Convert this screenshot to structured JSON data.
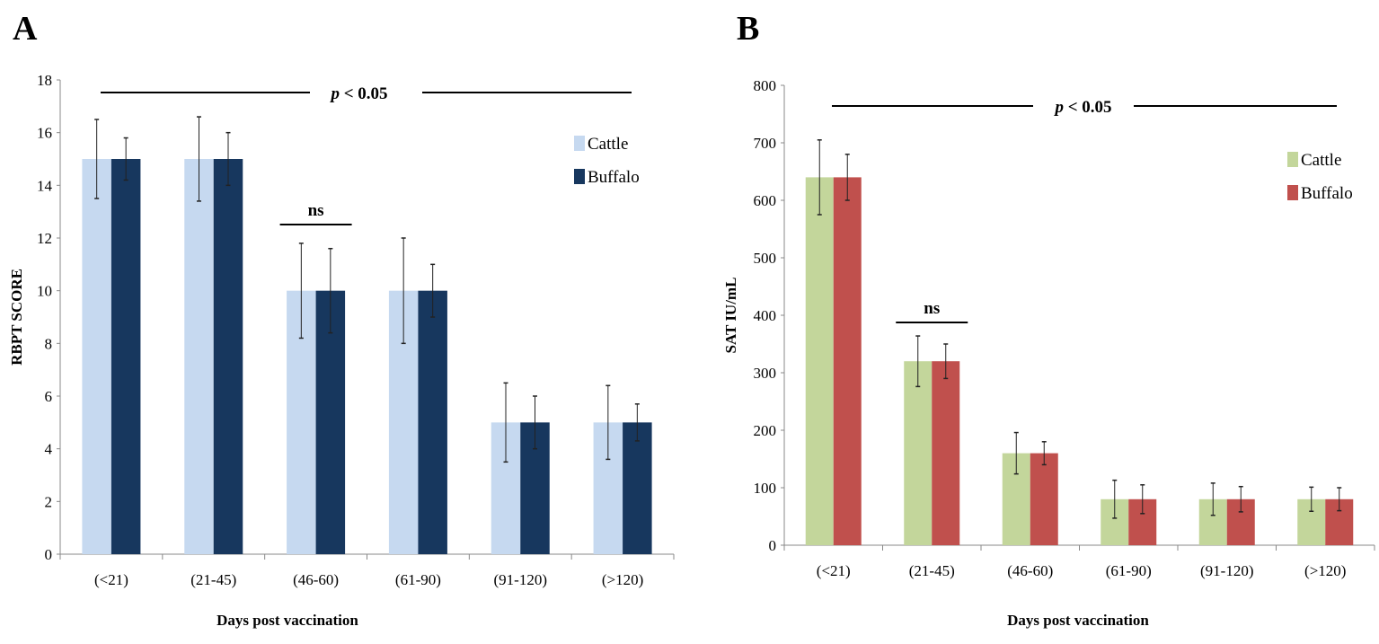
{
  "chart_data": [
    {
      "type": "bar",
      "panel_label": "A",
      "title": "",
      "xlabel": "Days post vaccination",
      "ylabel": "RBPT SCORE",
      "ylim": [
        0,
        18
      ],
      "yticks": [
        0,
        2,
        4,
        6,
        8,
        10,
        12,
        14,
        16,
        18
      ],
      "categories": [
        "(<21)",
        "(21-45)",
        "(46-60)",
        "(61-90)",
        "(91-120)",
        "(>120)"
      ],
      "series": [
        {
          "name": "Cattle",
          "color": "#c6d9f0",
          "values": [
            15,
            15,
            10,
            10,
            5,
            5
          ],
          "error": [
            1.5,
            1.6,
            1.8,
            2.0,
            1.5,
            1.4
          ]
        },
        {
          "name": "Buffalo",
          "color": "#17375e",
          "values": [
            15,
            15,
            10,
            10,
            5,
            5
          ],
          "error": [
            0.8,
            1.0,
            1.6,
            1.0,
            1.0,
            0.7
          ]
        }
      ],
      "legend": "right",
      "annotations": {
        "overall": "p < 0.05",
        "overall_p": "p",
        "overall_rest": " < 0.05",
        "ns": "ns",
        "ns_category_index": 2
      }
    },
    {
      "type": "bar",
      "panel_label": "B",
      "title": "",
      "xlabel": "Days post vaccination",
      "ylabel": "SAT IU/mL",
      "ylim": [
        0,
        800
      ],
      "yticks": [
        0,
        100,
        200,
        300,
        400,
        500,
        600,
        700,
        800
      ],
      "categories": [
        "(<21)",
        "(21-45)",
        "(46-60)",
        "(61-90)",
        "(91-120)",
        "(>120)"
      ],
      "series": [
        {
          "name": "Cattle",
          "color": "#c3d69b",
          "values": [
            640,
            320,
            160,
            80,
            80,
            80
          ],
          "error": [
            65,
            44,
            36,
            33,
            28,
            21
          ]
        },
        {
          "name": "Buffalo",
          "color": "#c0504d",
          "values": [
            640,
            320,
            160,
            80,
            80,
            80
          ],
          "error": [
            40,
            30,
            20,
            25,
            22,
            20
          ]
        }
      ],
      "legend": "right",
      "annotations": {
        "overall": "p < 0.05",
        "overall_p": "p",
        "overall_rest": " < 0.05",
        "ns": "ns",
        "ns_category_index": 1
      }
    }
  ]
}
